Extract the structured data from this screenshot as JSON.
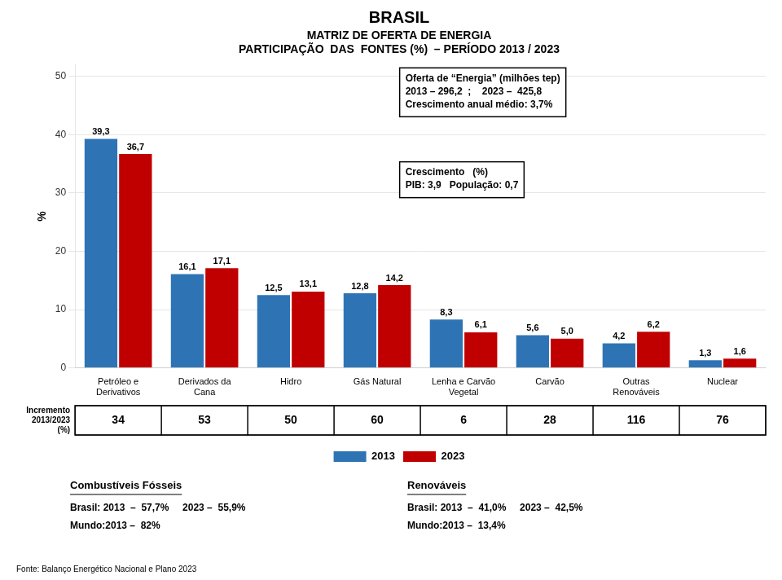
{
  "chart_data": {
    "type": "bar",
    "title": "BRASIL",
    "subtitle": [
      "MATRIZ DE OFERTA DE ENERGIA",
      "PARTICIPAÇÃO  DAS  FONTES (%)  – PERÍODO 2013 / 2023"
    ],
    "ylabel": "%",
    "categories": [
      "Petróleo e\nDerivativos",
      "Derivados da\nCana",
      "Hidro",
      "Gás Natural",
      "Lenha e Carvão\nVegetal",
      "Carvão",
      "Outras\nRenováveis",
      "Nuclear"
    ],
    "series": [
      {
        "name": "2013",
        "color": "#2E74B5",
        "values": [
          39.3,
          16.1,
          12.5,
          12.8,
          8.3,
          5.6,
          4.2,
          1.3
        ],
        "value_labels": [
          "39,3",
          "16,1",
          "12,5",
          "12,8",
          "8,3",
          "5,6",
          "4,2",
          "1,3"
        ]
      },
      {
        "name": "2023",
        "color": "#C00000",
        "values": [
          36.7,
          17.1,
          13.1,
          14.2,
          6.1,
          5.0,
          6.2,
          1.6
        ],
        "value_labels": [
          "36,7",
          "17,1",
          "13,1",
          "14,2",
          "6,1",
          "5,0",
          "6,2",
          "1,6"
        ]
      }
    ],
    "data_labels": true,
    "ylim": [
      0,
      52
    ],
    "yticks": [
      0,
      10,
      20,
      30,
      40,
      50
    ],
    "grid": true,
    "legend": "bottom",
    "increments": [
      34,
      53,
      50,
      60,
      6,
      28,
      116,
      76
    ],
    "increments_label": "Incremento\n2013/2023\n(%)",
    "annotations": [
      [
        "Oferta de “Energia” (milhões tep)",
        "2013 – 296,2  ;    2023 –  425,8",
        "Crescimento anual médio: 3,7%"
      ],
      [
        "Crescimento   (%)",
        "PIB: 3,9   População: 0,7"
      ],
      [
        "Combustíveis Fósseis",
        "Brasil: 2013  –  57,7%     2023 –  55,9%",
        "Mundo:2013 –  82%"
      ],
      [
        "Renováveis",
        "Brasil: 2013  –  41,0%     2023 –  42,5%",
        "Mundo:2013 –  13,4%"
      ],
      [
        "Fonte: Balanço Energético Nacional e Plano 2023"
      ]
    ]
  }
}
